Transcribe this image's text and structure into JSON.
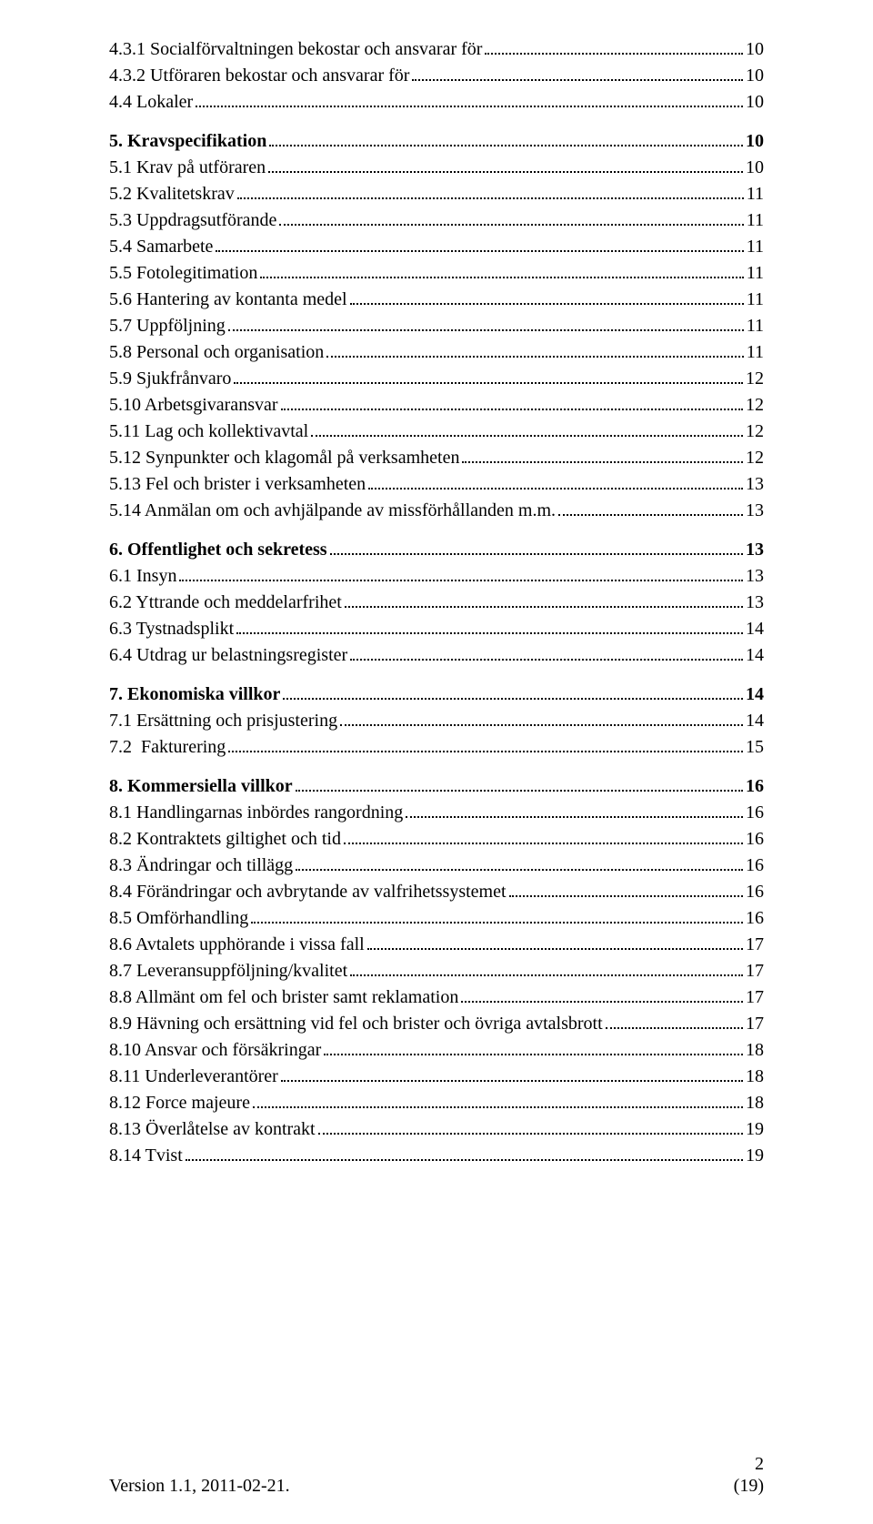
{
  "toc": {
    "entries": [
      {
        "title": "4.3.1 Socialförvaltningen bekostar och ansvarar för",
        "page": "10",
        "bold": false
      },
      {
        "title": "4.3.2 Utföraren bekostar och ansvarar för",
        "page": "10",
        "bold": false
      },
      {
        "title": "4.4 Lokaler",
        "page": "10",
        "bold": false
      },
      {
        "title": "5. Kravspecifikation",
        "page": "10",
        "bold": true
      },
      {
        "title": "5.1 Krav på utföraren",
        "page": "10",
        "bold": false
      },
      {
        "title": "5.2 Kvalitetskrav",
        "page": "11",
        "bold": false
      },
      {
        "title": "5.3 Uppdragsutförande",
        "page": "11",
        "bold": false
      },
      {
        "title": "5.4 Samarbete",
        "page": "11",
        "bold": false
      },
      {
        "title": "5.5 Fotolegitimation",
        "page": "11",
        "bold": false
      },
      {
        "title": "5.6 Hantering av kontanta medel",
        "page": "11",
        "bold": false
      },
      {
        "title": "5.7 Uppföljning",
        "page": "11",
        "bold": false
      },
      {
        "title": "5.8 Personal och organisation",
        "page": "11",
        "bold": false
      },
      {
        "title": "5.9 Sjukfrånvaro",
        "page": "12",
        "bold": false
      },
      {
        "title": "5.10 Arbetsgivaransvar",
        "page": "12",
        "bold": false
      },
      {
        "title": "5.11 Lag och kollektivavtal",
        "page": "12",
        "bold": false
      },
      {
        "title": "5.12 Synpunkter och klagomål på verksamheten",
        "page": "12",
        "bold": false
      },
      {
        "title": "5.13 Fel och brister i verksamheten",
        "page": "13",
        "bold": false
      },
      {
        "title": "5.14 Anmälan om och avhjälpande av missförhållanden m.m.",
        "page": "13",
        "bold": false
      },
      {
        "title": "6. Offentlighet och sekretess",
        "page": "13",
        "bold": true
      },
      {
        "title": "6.1 Insyn",
        "page": "13",
        "bold": false
      },
      {
        "title": "6.2 Yttrande och meddelarfrihet",
        "page": "13",
        "bold": false
      },
      {
        "title": "6.3 Tystnadsplikt",
        "page": "14",
        "bold": false
      },
      {
        "title": "6.4 Utdrag ur belastningsregister",
        "page": "14",
        "bold": false
      },
      {
        "title": "7. Ekonomiska villkor",
        "page": "14",
        "bold": true
      },
      {
        "title": "7.1 Ersättning och prisjustering",
        "page": "14",
        "bold": false
      },
      {
        "title": "7.2  Fakturering",
        "page": "15",
        "bold": false
      },
      {
        "title": "8. Kommersiella villkor",
        "page": "16",
        "bold": true
      },
      {
        "title": "8.1 Handlingarnas inbördes rangordning",
        "page": "16",
        "bold": false
      },
      {
        "title": "8.2 Kontraktets giltighet och tid",
        "page": "16",
        "bold": false
      },
      {
        "title": "8.3 Ändringar och tillägg",
        "page": "16",
        "bold": false
      },
      {
        "title": "8.4 Förändringar och avbrytande av valfrihetssystemet",
        "page": "16",
        "bold": false
      },
      {
        "title": "8.5 Omförhandling",
        "page": "16",
        "bold": false
      },
      {
        "title": "8.6 Avtalets upphörande i vissa fall",
        "page": "17",
        "bold": false
      },
      {
        "title": "8.7 Leveransuppföljning/kvalitet",
        "page": "17",
        "bold": false
      },
      {
        "title": "8.8 Allmänt om fel och brister samt reklamation",
        "page": "17",
        "bold": false
      },
      {
        "title": "8.9 Hävning och ersättning vid fel och brister och övriga avtalsbrott",
        "page": "17",
        "bold": false
      },
      {
        "title": "8.10 Ansvar och försäkringar",
        "page": "18",
        "bold": false
      },
      {
        "title": "8.11 Underleverantörer",
        "page": "18",
        "bold": false
      },
      {
        "title": "8.12 Force majeure",
        "page": "18",
        "bold": false
      },
      {
        "title": "8.13 Överlåtelse av kontrakt",
        "page": "19",
        "bold": false
      },
      {
        "title": "8.14 Tvist",
        "page": "19",
        "bold": false
      }
    ]
  },
  "footer": {
    "left": "Version 1.1, 2011-02-21.",
    "page_current": "2",
    "page_total": "(19)"
  },
  "colors": {
    "text": "#000000",
    "background": "#ffffff"
  },
  "typography": {
    "family": "Times New Roman",
    "body_size_pt": 15
  }
}
